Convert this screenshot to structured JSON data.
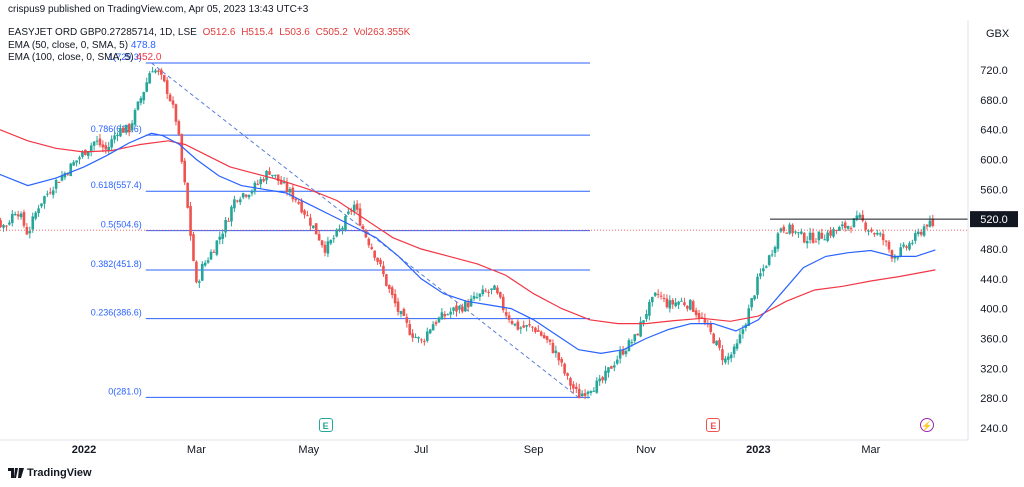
{
  "top_bar": {
    "publisher": "crispus9 published on TradingView.com, Apr 05, 2023 13:43 UTC+3",
    "currency": "GBX"
  },
  "legend": {
    "symbol": "EASYJET ORD GBP0.27285714, 1D, LSE",
    "ohlc": [
      "O512.6",
      "H515.4",
      "L503.6",
      "C505.2",
      "Vol263.355K"
    ],
    "ema50_label": "EMA (50, close, 0, SMA, 5)",
    "ema50_value": "478.8",
    "ema100_label": "EMA (100, close, 0, SMA, 5)",
    "ema100_value": "452.0",
    "ema50_color": "#2962ff",
    "ema100_color": "#f23645"
  },
  "footer": {
    "brand": "TradingView"
  },
  "chart_data": {
    "type": "candlestick",
    "ylim": [
      240,
      740
    ],
    "y_ticks": [
      "720.0",
      "680.0",
      "640.0",
      "600.0",
      "560.0",
      "520.0",
      "480.0",
      "440.0",
      "400.0",
      "360.0",
      "320.0",
      "280.0",
      "240.0"
    ],
    "x_ticks": [
      {
        "label": "2022",
        "bold": true,
        "month": 0
      },
      {
        "label": "Mar",
        "bold": false,
        "month": 2
      },
      {
        "label": "May",
        "bold": false,
        "month": 4
      },
      {
        "label": "Jul",
        "bold": false,
        "month": 6
      },
      {
        "label": "Sep",
        "bold": false,
        "month": 8
      },
      {
        "label": "Nov",
        "bold": false,
        "month": 10
      },
      {
        "label": "2023",
        "bold": true,
        "month": 12
      },
      {
        "label": "Mar",
        "bold": false,
        "month": 14
      }
    ],
    "price_anchors": [
      [
        -1.9,
        548
      ],
      [
        -1.6,
        520
      ],
      [
        -1.4,
        510
      ],
      [
        -1.2,
        535
      ],
      [
        -1.0,
        500
      ],
      [
        -0.8,
        540
      ],
      [
        -0.5,
        570
      ],
      [
        -0.3,
        585
      ],
      [
        0.0,
        610
      ],
      [
        0.2,
        625
      ],
      [
        0.4,
        612
      ],
      [
        0.6,
        640
      ],
      [
        0.8,
        640
      ],
      [
        1.0,
        680
      ],
      [
        1.1,
        700
      ],
      [
        1.2,
        725
      ],
      [
        1.35,
        712
      ],
      [
        1.5,
        690
      ],
      [
        1.65,
        650
      ],
      [
        1.75,
        590
      ],
      [
        1.85,
        530
      ],
      [
        2.0,
        430
      ],
      [
        2.1,
        455
      ],
      [
        2.3,
        480
      ],
      [
        2.5,
        510
      ],
      [
        2.7,
        550
      ],
      [
        3.0,
        560
      ],
      [
        3.3,
        585
      ],
      [
        3.6,
        560
      ],
      [
        3.8,
        545
      ],
      [
        4.0,
        520
      ],
      [
        4.3,
        480
      ],
      [
        4.6,
        510
      ],
      [
        4.8,
        540
      ],
      [
        5.0,
        500
      ],
      [
        5.2,
        470
      ],
      [
        5.4,
        430
      ],
      [
        5.6,
        395
      ],
      [
        5.8,
        370
      ],
      [
        6.0,
        355
      ],
      [
        6.2,
        380
      ],
      [
        6.5,
        395
      ],
      [
        6.8,
        405
      ],
      [
        7.1,
        420
      ],
      [
        7.3,
        425
      ],
      [
        7.5,
        395
      ],
      [
        7.7,
        375
      ],
      [
        8.0,
        375
      ],
      [
        8.2,
        360
      ],
      [
        8.4,
        340
      ],
      [
        8.6,
        305
      ],
      [
        8.8,
        283
      ],
      [
        9.0,
        295
      ],
      [
        9.2,
        300
      ],
      [
        9.4,
        325
      ],
      [
        9.6,
        345
      ],
      [
        9.8,
        360
      ],
      [
        10.0,
        395
      ],
      [
        10.2,
        420
      ],
      [
        10.4,
        405
      ],
      [
        10.6,
        410
      ],
      [
        10.8,
        405
      ],
      [
        11.0,
        385
      ],
      [
        11.2,
        360
      ],
      [
        11.4,
        330
      ],
      [
        11.6,
        345
      ],
      [
        11.8,
        390
      ],
      [
        12.0,
        440
      ],
      [
        12.2,
        470
      ],
      [
        12.4,
        510
      ],
      [
        12.6,
        505
      ],
      [
        12.8,
        495
      ],
      [
        13.0,
        495
      ],
      [
        13.2,
        500
      ],
      [
        13.4,
        505
      ],
      [
        13.6,
        512
      ],
      [
        13.8,
        520
      ],
      [
        14.0,
        505
      ],
      [
        14.2,
        495
      ],
      [
        14.4,
        470
      ],
      [
        14.6,
        480
      ],
      [
        14.8,
        495
      ],
      [
        15.0,
        515
      ],
      [
        15.15,
        505
      ]
    ],
    "ema50": [
      [
        -2.1,
        600
      ],
      [
        -1.5,
        580
      ],
      [
        -1.0,
        565
      ],
      [
        -0.5,
        575
      ],
      [
        0.0,
        590
      ],
      [
        0.4,
        605
      ],
      [
        0.8,
        622
      ],
      [
        1.2,
        635
      ],
      [
        1.4,
        632
      ],
      [
        1.7,
        620
      ],
      [
        2.0,
        600
      ],
      [
        2.4,
        578
      ],
      [
        2.8,
        565
      ],
      [
        3.2,
        560
      ],
      [
        3.6,
        555
      ],
      [
        4.0,
        540
      ],
      [
        4.4,
        525
      ],
      [
        4.8,
        510
      ],
      [
        5.2,
        495
      ],
      [
        5.6,
        470
      ],
      [
        6.0,
        440
      ],
      [
        6.4,
        420
      ],
      [
        6.8,
        410
      ],
      [
        7.2,
        405
      ],
      [
        7.6,
        400
      ],
      [
        8.0,
        385
      ],
      [
        8.4,
        365
      ],
      [
        8.8,
        345
      ],
      [
        9.2,
        340
      ],
      [
        9.6,
        345
      ],
      [
        10.0,
        360
      ],
      [
        10.4,
        372
      ],
      [
        10.8,
        380
      ],
      [
        11.2,
        380
      ],
      [
        11.6,
        370
      ],
      [
        12.0,
        385
      ],
      [
        12.4,
        420
      ],
      [
        12.8,
        455
      ],
      [
        13.2,
        470
      ],
      [
        13.6,
        475
      ],
      [
        14.0,
        478
      ],
      [
        14.4,
        470
      ],
      [
        14.8,
        470
      ],
      [
        15.15,
        478.8
      ]
    ],
    "ema100": [
      [
        -2.1,
        658
      ],
      [
        -1.5,
        640
      ],
      [
        -1.0,
        625
      ],
      [
        -0.5,
        615
      ],
      [
        0.0,
        610
      ],
      [
        0.5,
        612
      ],
      [
        1.0,
        620
      ],
      [
        1.5,
        625
      ],
      [
        1.8,
        620
      ],
      [
        2.2,
        605
      ],
      [
        2.6,
        590
      ],
      [
        3.0,
        582
      ],
      [
        3.5,
        572
      ],
      [
        4.0,
        560
      ],
      [
        4.5,
        545
      ],
      [
        5.0,
        520
      ],
      [
        5.5,
        495
      ],
      [
        6.0,
        480
      ],
      [
        6.5,
        470
      ],
      [
        7.0,
        460
      ],
      [
        7.5,
        445
      ],
      [
        8.0,
        420
      ],
      [
        8.5,
        400
      ],
      [
        9.0,
        385
      ],
      [
        9.5,
        380
      ],
      [
        10.0,
        380
      ],
      [
        10.5,
        384
      ],
      [
        11.0,
        387
      ],
      [
        11.5,
        383
      ],
      [
        12.0,
        390
      ],
      [
        12.5,
        410
      ],
      [
        13.0,
        425
      ],
      [
        13.5,
        430
      ],
      [
        14.0,
        437
      ],
      [
        14.5,
        443
      ],
      [
        15.15,
        452.0
      ]
    ],
    "fibonacci": [
      {
        "label": "0(281.0)",
        "price": 281.0
      },
      {
        "label": "0.236(386.6)",
        "price": 386.6
      },
      {
        "label": "0.382(451.8)",
        "price": 451.8
      },
      {
        "label": "0.5(504.6)",
        "price": 504.6
      },
      {
        "label": "0.618(557.4)",
        "price": 557.4
      },
      {
        "label": "0.786(632.6)",
        "price": 632.6
      },
      {
        "label": "1(729.3)",
        "price": 729.3
      }
    ],
    "resistance_line": {
      "price": 520.0,
      "label": "520.0"
    },
    "last_price": 505.2,
    "event_markers": [
      {
        "symbol": "E",
        "type": "earnings",
        "month": -1.9
      },
      {
        "symbol": "E",
        "type": "earnings",
        "month": 4.3
      },
      {
        "symbol": "E",
        "type": "earnings",
        "month": 11.2
      },
      {
        "symbol": "⚡",
        "type": "split",
        "month": 15.0
      }
    ],
    "colors": {
      "up": "#26a69a",
      "down": "#ef5350",
      "fib": "#2962ff",
      "resistance": "#131722"
    }
  }
}
